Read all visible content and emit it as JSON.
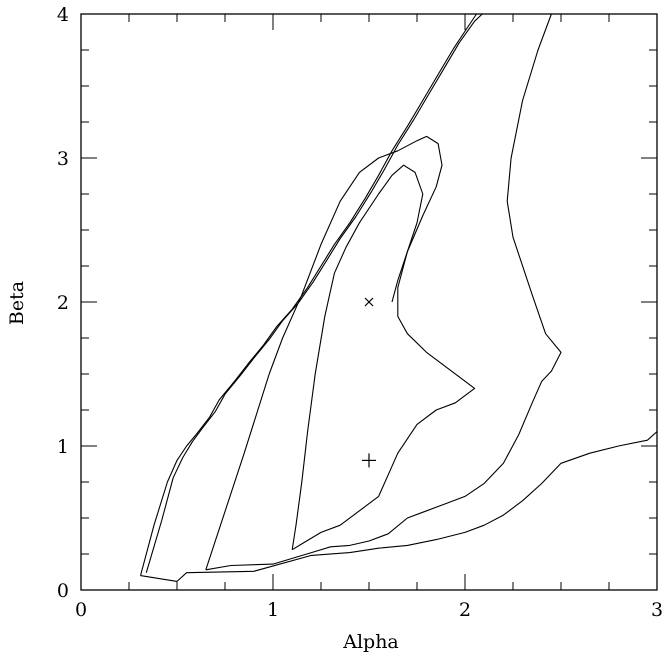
{
  "chart_data": {
    "type": "line",
    "title": "",
    "xlabel": "Alpha",
    "ylabel": "Beta",
    "xlim": [
      0,
      3
    ],
    "ylim": [
      0,
      4
    ],
    "x_ticks": [
      0,
      1,
      2,
      3
    ],
    "y_ticks": [
      0,
      1,
      2,
      3,
      4
    ],
    "x_ticks_minor_step": 0.25,
    "y_ticks_minor_step": 0.25,
    "grid": false,
    "markers": [
      {
        "symbol": "x",
        "x": 1.5,
        "y": 2.0
      },
      {
        "symbol": "+",
        "x": 1.5,
        "y": 0.9
      }
    ],
    "contours": [
      {
        "points": [
          [
            0.31,
            0.1
          ],
          [
            0.5,
            0.06
          ],
          [
            0.55,
            0.12
          ],
          [
            0.9,
            0.13
          ],
          [
            1.2,
            0.24
          ],
          [
            1.4,
            0.26
          ],
          [
            1.55,
            0.29
          ],
          [
            1.7,
            0.31
          ],
          [
            1.85,
            0.35
          ],
          [
            2.0,
            0.4
          ],
          [
            2.1,
            0.45
          ],
          [
            2.2,
            0.52
          ],
          [
            2.3,
            0.62
          ],
          [
            2.4,
            0.74
          ],
          [
            2.5,
            0.88
          ],
          [
            2.65,
            0.95
          ],
          [
            2.8,
            1.0
          ],
          [
            2.95,
            1.04
          ],
          [
            3.0,
            1.1
          ]
        ]
      },
      {
        "points": [
          [
            0.31,
            0.1
          ],
          [
            0.38,
            0.45
          ],
          [
            0.45,
            0.75
          ],
          [
            0.5,
            0.9
          ],
          [
            0.55,
            1.0
          ],
          [
            0.6,
            1.08
          ],
          [
            0.67,
            1.2
          ],
          [
            0.72,
            1.32
          ],
          [
            0.8,
            1.45
          ],
          [
            0.87,
            1.57
          ],
          [
            0.95,
            1.7
          ],
          [
            1.02,
            1.83
          ],
          [
            1.1,
            1.95
          ],
          [
            1.18,
            2.1
          ],
          [
            1.25,
            2.25
          ],
          [
            1.32,
            2.4
          ],
          [
            1.4,
            2.55
          ],
          [
            1.48,
            2.72
          ],
          [
            1.55,
            2.88
          ],
          [
            1.62,
            3.05
          ],
          [
            1.7,
            3.22
          ],
          [
            1.78,
            3.4
          ],
          [
            1.86,
            3.58
          ],
          [
            1.94,
            3.76
          ],
          [
            2.02,
            3.92
          ],
          [
            2.06,
            4.0
          ]
        ]
      },
      {
        "points": [
          [
            0.34,
            0.12
          ],
          [
            0.42,
            0.48
          ],
          [
            0.48,
            0.78
          ],
          [
            0.53,
            0.92
          ],
          [
            0.58,
            1.03
          ],
          [
            0.63,
            1.12
          ],
          [
            0.7,
            1.24
          ],
          [
            0.75,
            1.36
          ],
          [
            0.83,
            1.49
          ],
          [
            0.9,
            1.61
          ],
          [
            0.98,
            1.74
          ],
          [
            1.05,
            1.87
          ],
          [
            1.13,
            1.99
          ],
          [
            1.21,
            2.14
          ],
          [
            1.28,
            2.29
          ],
          [
            1.35,
            2.44
          ],
          [
            1.43,
            2.59
          ],
          [
            1.51,
            2.76
          ],
          [
            1.58,
            2.92
          ],
          [
            1.65,
            3.09
          ],
          [
            1.73,
            3.26
          ],
          [
            1.81,
            3.44
          ],
          [
            1.89,
            3.62
          ],
          [
            1.97,
            3.8
          ],
          [
            2.05,
            3.95
          ],
          [
            2.09,
            4.0
          ]
        ]
      },
      {
        "points": [
          [
            0.65,
            0.14
          ],
          [
            0.78,
            0.17
          ],
          [
            1.0,
            0.18
          ],
          [
            1.2,
            0.26
          ],
          [
            1.3,
            0.3
          ],
          [
            1.4,
            0.31
          ],
          [
            1.5,
            0.34
          ],
          [
            1.6,
            0.39
          ],
          [
            1.7,
            0.5
          ],
          [
            1.8,
            0.55
          ],
          [
            1.9,
            0.6
          ],
          [
            2.0,
            0.65
          ],
          [
            2.1,
            0.74
          ],
          [
            2.2,
            0.88
          ],
          [
            2.28,
            1.08
          ],
          [
            2.35,
            1.3
          ],
          [
            2.4,
            1.45
          ],
          [
            2.45,
            1.52
          ],
          [
            2.5,
            1.65
          ],
          [
            2.42,
            1.78
          ],
          [
            2.35,
            2.05
          ],
          [
            2.25,
            2.45
          ],
          [
            2.22,
            2.7
          ],
          [
            2.24,
            3.0
          ],
          [
            2.3,
            3.4
          ],
          [
            2.38,
            3.75
          ],
          [
            2.45,
            4.0
          ]
        ]
      },
      {
        "points": [
          [
            0.65,
            0.14
          ],
          [
            0.85,
            0.95
          ],
          [
            0.98,
            1.5
          ],
          [
            1.05,
            1.75
          ],
          [
            1.15,
            2.05
          ],
          [
            1.25,
            2.4
          ],
          [
            1.35,
            2.7
          ],
          [
            1.45,
            2.9
          ],
          [
            1.55,
            3.0
          ],
          [
            1.65,
            3.05
          ],
          [
            1.75,
            3.12
          ],
          [
            1.8,
            3.15
          ],
          [
            1.86,
            3.1
          ],
          [
            1.88,
            2.95
          ],
          [
            1.85,
            2.8
          ],
          [
            1.78,
            2.6
          ],
          [
            1.7,
            2.35
          ],
          [
            1.65,
            2.1
          ],
          [
            1.65,
            1.9
          ],
          [
            1.7,
            1.78
          ],
          [
            1.8,
            1.65
          ],
          [
            1.9,
            1.55
          ],
          [
            2.0,
            1.45
          ],
          [
            2.05,
            1.4
          ],
          [
            2.0,
            1.35
          ],
          [
            1.95,
            1.3
          ],
          [
            1.85,
            1.25
          ],
          [
            1.75,
            1.15
          ],
          [
            1.7,
            1.05
          ],
          [
            1.65,
            0.95
          ],
          [
            1.6,
            0.8
          ],
          [
            1.55,
            0.65
          ],
          [
            1.45,
            0.55
          ],
          [
            1.35,
            0.45
          ],
          [
            1.25,
            0.4
          ],
          [
            1.15,
            0.32
          ],
          [
            1.1,
            0.28
          ]
        ]
      },
      {
        "points": [
          [
            1.1,
            0.28
          ],
          [
            1.12,
            0.45
          ],
          [
            1.15,
            0.75
          ],
          [
            1.18,
            1.1
          ],
          [
            1.22,
            1.5
          ],
          [
            1.27,
            1.9
          ],
          [
            1.32,
            2.2
          ],
          [
            1.38,
            2.38
          ],
          [
            1.45,
            2.55
          ],
          [
            1.55,
            2.75
          ],
          [
            1.62,
            2.88
          ],
          [
            1.68,
            2.95
          ],
          [
            1.74,
            2.9
          ],
          [
            1.78,
            2.75
          ],
          [
            1.75,
            2.55
          ],
          [
            1.7,
            2.35
          ],
          [
            1.65,
            2.15
          ],
          [
            1.62,
            2.0
          ]
        ]
      }
    ]
  }
}
